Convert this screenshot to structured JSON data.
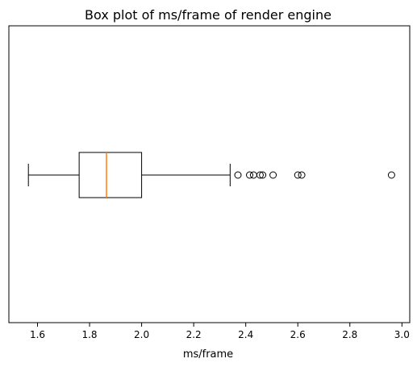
{
  "chart_data": {
    "type": "boxplot",
    "orientation": "horizontal",
    "title": "Box plot of ms/frame of render engine",
    "xlabel": "ms/frame",
    "ylabel": "",
    "xlim": [
      1.49,
      3.03
    ],
    "xticks": [
      1.6,
      1.8,
      2.0,
      2.2,
      2.4,
      2.6,
      2.8,
      3.0
    ],
    "xtick_labels": [
      "1.6",
      "1.8",
      "2.0",
      "2.2",
      "2.4",
      "2.6",
      "2.8",
      "3.0"
    ],
    "grid": false,
    "legend": "none",
    "box": {
      "whisker_low": 1.565,
      "q1": 1.76,
      "median": 1.865,
      "q3": 2.0,
      "whisker_high": 2.34
    },
    "outliers": [
      2.37,
      2.415,
      2.43,
      2.455,
      2.465,
      2.505,
      2.6,
      2.615,
      2.96
    ],
    "colors": {
      "box": "#000000",
      "median": "#ff7f0e",
      "outlier": "#000000"
    }
  }
}
